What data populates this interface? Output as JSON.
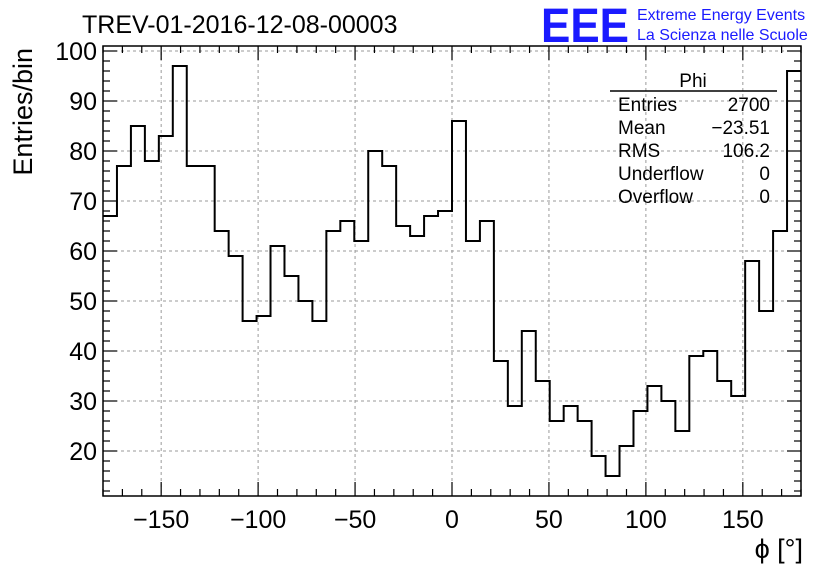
{
  "header": {
    "run_title": "TREV-01-2016-12-08-00003",
    "logo_text": "EEE",
    "logo_line1": "Extreme Energy Events",
    "logo_line2": "La Scienza nelle Scuole",
    "logo_color": "#1a1aff"
  },
  "chart_data": {
    "type": "bar",
    "style": "step-histogram",
    "xlabel": "ϕ [°]",
    "ylabel": "Entries/bin",
    "xlim": [
      -180,
      180
    ],
    "ylim": [
      11,
      101
    ],
    "bin_width": 7.2,
    "bin_edges_start": -180,
    "x_ticks": [
      -150,
      -100,
      -50,
      0,
      50,
      100,
      150
    ],
    "y_ticks": [
      20,
      30,
      40,
      50,
      60,
      70,
      80,
      90,
      100
    ],
    "grid": true,
    "values": [
      67,
      77,
      85,
      78,
      83,
      97,
      77,
      77,
      64,
      59,
      46,
      47,
      61,
      55,
      50,
      46,
      64,
      66,
      62,
      80,
      77,
      65,
      63,
      67,
      68,
      86,
      62,
      66,
      38,
      29,
      44,
      34,
      26,
      29,
      26,
      19,
      15,
      21,
      28,
      33,
      30,
      24,
      39,
      40,
      34,
      31,
      58,
      48,
      64,
      96
    ]
  },
  "stats_box": {
    "title": "Phi",
    "rows": [
      {
        "label": "Entries",
        "value": "2700"
      },
      {
        "label": "Mean",
        "value": "−23.51"
      },
      {
        "label": "RMS",
        "value": "106.2"
      },
      {
        "label": "Underflow",
        "value": "0"
      },
      {
        "label": "Overflow",
        "value": "0"
      }
    ]
  }
}
